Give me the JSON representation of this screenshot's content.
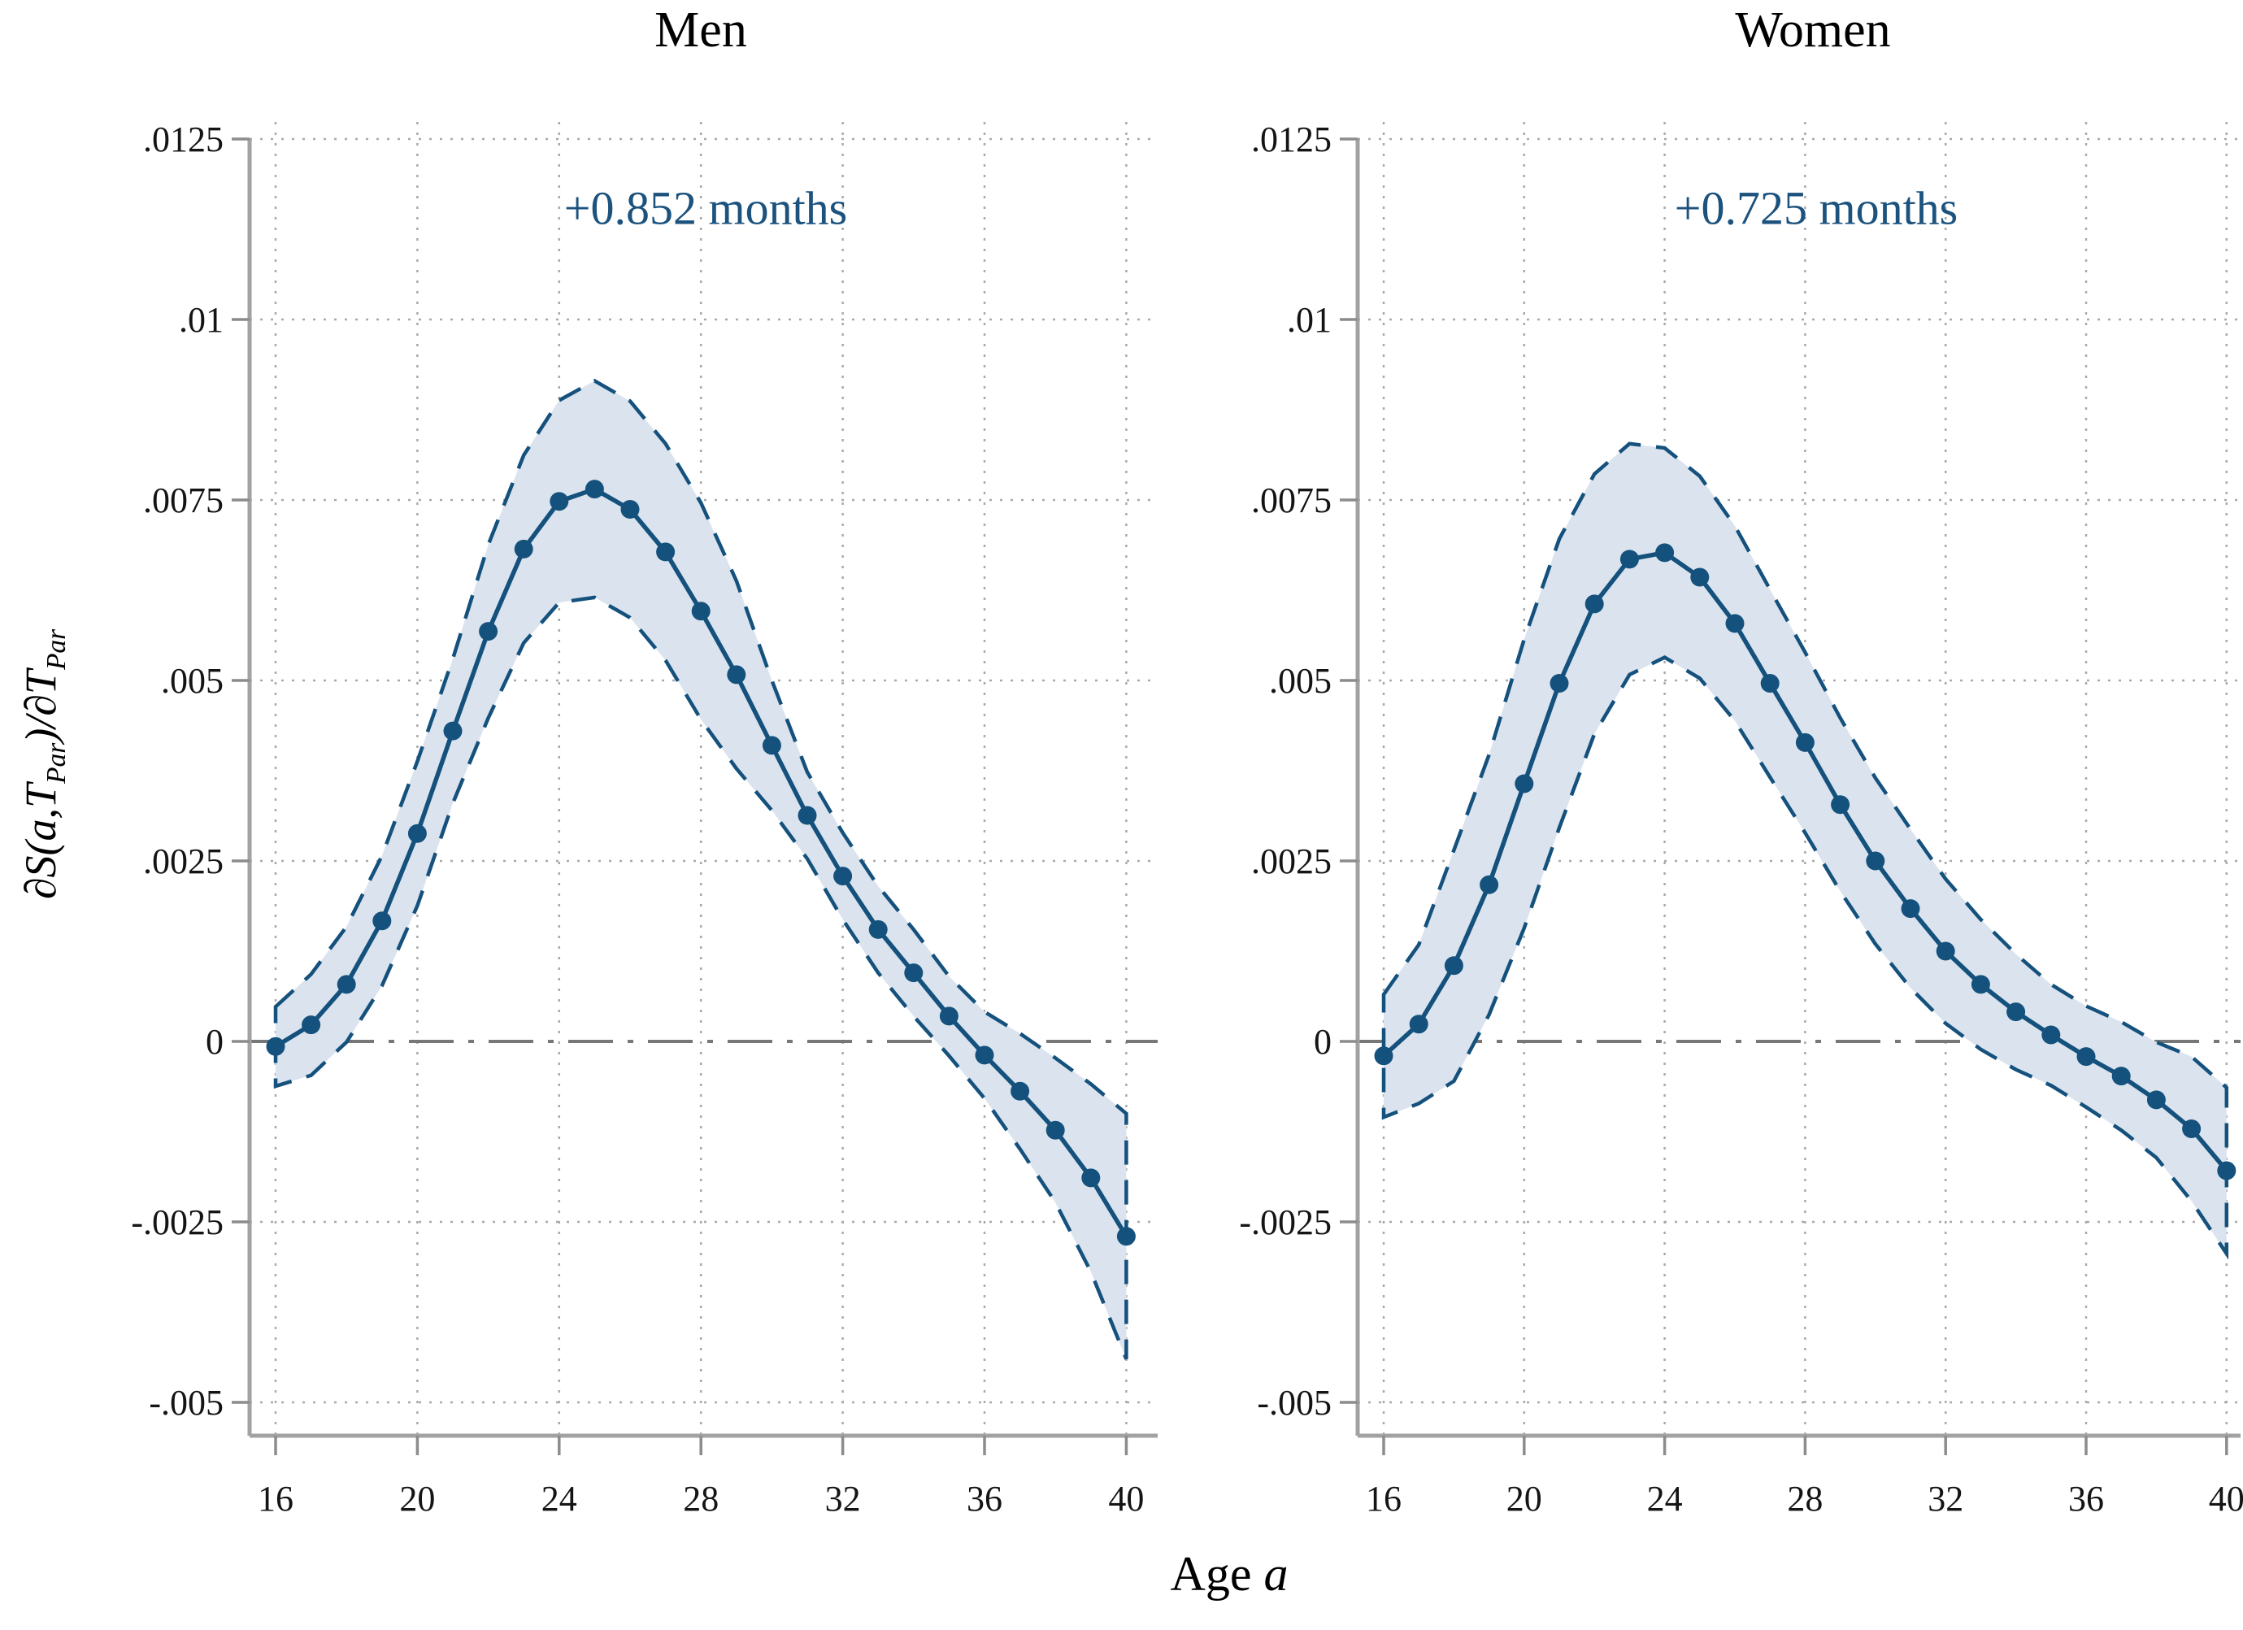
{
  "colors": {
    "line": "#15517d",
    "band_fill": "#dbe4ee",
    "band_edge": "#15517d",
    "annotation": "#1b527e",
    "axis": "#a2a2a2",
    "tick_mark": "#8c8c8c",
    "grid": "#a9a9a9",
    "zero_line": "#777777",
    "tick_text": "#141414"
  },
  "axis_titles": {
    "x": {
      "pre": "Age ",
      "var": "a"
    },
    "y": {
      "pre": "∂S(a,T",
      "sub1": "Par",
      "mid": ")/∂T",
      "sub2": "Par"
    }
  },
  "y_axis": {
    "values": [
      0.0125,
      0.01,
      0.0075,
      0.005,
      0.0025,
      0,
      -0.0025,
      -0.005
    ],
    "labels": [
      ".0125",
      ".01",
      ".0075",
      ".005",
      ".0025",
      "0",
      "-.0025",
      "-.005"
    ]
  },
  "chart_data": [
    {
      "type": "line",
      "title": "Men",
      "annotation": "+0.852 months",
      "xlabel": "Age a",
      "ylabel": "∂S(a,T_Par)/∂T_Par",
      "x": [
        16,
        17,
        18,
        19,
        20,
        21,
        22,
        23,
        24,
        25,
        26,
        27,
        28,
        29,
        30,
        31,
        32,
        33,
        34,
        35,
        36,
        37,
        38,
        39,
        40
      ],
      "xticks": [
        16,
        20,
        24,
        28,
        32,
        36,
        40
      ],
      "yticks": [
        0.0125,
        0.01,
        0.0075,
        0.005,
        0.0025,
        0,
        -0.0025,
        -0.005
      ],
      "ylim": [
        -0.0055,
        0.0127
      ],
      "grid": true,
      "zero_line": true,
      "legend": "none",
      "series": [
        {
          "name": "mean",
          "values": [
            -7e-05,
            0.00023,
            0.00079,
            0.00167,
            0.00288,
            0.0043,
            0.00568,
            0.00682,
            0.00748,
            0.00765,
            0.00737,
            0.00678,
            0.00596,
            0.00508,
            0.0041,
            0.00313,
            0.00229,
            0.00155,
            0.00095,
            0.00035,
            -0.00019,
            -0.00069,
            -0.00123,
            -0.00189,
            -0.0027
          ]
        },
        {
          "name": "ci_lower",
          "values": [
            -0.00062,
            -0.00047,
            -1e-05,
            0.00077,
            0.00188,
            0.0033,
            0.00448,
            0.00552,
            0.00608,
            0.00615,
            0.00587,
            0.00528,
            0.00446,
            0.00378,
            0.0032,
            0.00253,
            0.00169,
            0.00095,
            0.00035,
            -0.0002,
            -0.00079,
            -0.00149,
            -0.00223,
            -0.00319,
            -0.0044
          ]
        },
        {
          "name": "ci_upper",
          "values": [
            0.00048,
            0.00093,
            0.00159,
            0.00257,
            0.00388,
            0.0053,
            0.00688,
            0.00812,
            0.00888,
            0.00915,
            0.00887,
            0.00828,
            0.00746,
            0.00638,
            0.005,
            0.00373,
            0.00289,
            0.00215,
            0.00155,
            0.0009,
            0.00041,
            0.00011,
            -0.00023,
            -0.00059,
            -0.001
          ]
        }
      ]
    },
    {
      "type": "line",
      "title": "Women",
      "annotation": "+0.725 months",
      "xlabel": "Age a",
      "ylabel": "∂S(a,T_Par)/∂T_Par",
      "x": [
        16,
        17,
        18,
        19,
        20,
        21,
        22,
        23,
        24,
        25,
        26,
        27,
        28,
        29,
        30,
        31,
        32,
        33,
        34,
        35,
        36,
        37,
        38,
        39,
        40
      ],
      "xticks": [
        16,
        20,
        24,
        28,
        32,
        36,
        40
      ],
      "yticks": [
        0.0125,
        0.01,
        0.0075,
        0.005,
        0.0025,
        0,
        -0.0025,
        -0.005
      ],
      "ylim": [
        -0.0055,
        0.0127
      ],
      "grid": true,
      "zero_line": true,
      "legend": "none",
      "series": [
        {
          "name": "mean",
          "values": [
            -0.0002,
            0.00024,
            0.00105,
            0.00217,
            0.00357,
            0.00496,
            0.00606,
            0.00668,
            0.00677,
            0.00643,
            0.00579,
            0.00496,
            0.00414,
            0.00328,
            0.0025,
            0.00184,
            0.00125,
            0.00079,
            0.00041,
            9e-05,
            -0.00021,
            -0.00048,
            -0.00081,
            -0.00121,
            -0.00179
          ]
        },
        {
          "name": "ci_lower",
          "values": [
            -0.00105,
            -0.00086,
            -0.00055,
            0.00037,
            0.00157,
            0.00296,
            0.00426,
            0.00508,
            0.00532,
            0.00503,
            0.00444,
            0.00366,
            0.00289,
            0.00208,
            0.00135,
            0.00074,
            0.00025,
            -0.00011,
            -0.00039,
            -0.00061,
            -0.00091,
            -0.00123,
            -0.00161,
            -0.00221,
            -0.00294
          ]
        },
        {
          "name": "ci_upper",
          "values": [
            0.00065,
            0.00134,
            0.00265,
            0.00397,
            0.00557,
            0.00696,
            0.00786,
            0.00828,
            0.00822,
            0.00783,
            0.00714,
            0.00626,
            0.00539,
            0.00448,
            0.00365,
            0.00294,
            0.00225,
            0.00169,
            0.00121,
            0.00079,
            0.00049,
            0.00027,
            -1e-05,
            -0.00021,
            -0.00064
          ]
        }
      ]
    }
  ]
}
